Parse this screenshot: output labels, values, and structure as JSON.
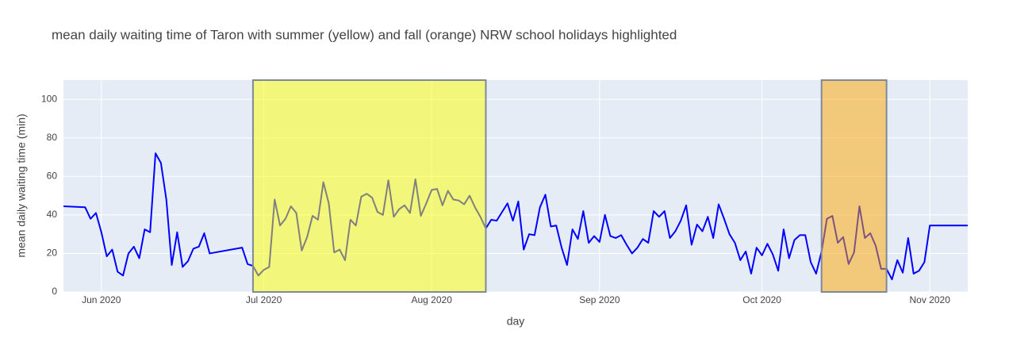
{
  "chart_data": {
    "type": "line",
    "title": "mean daily waiting time of Taron with summer (yellow) and fall (orange) NRW school holidays highlighted",
    "x_label": "day",
    "y_label": "mean daily waiting time (min)",
    "x": [
      "2020-05-25",
      "2020-05-29",
      "2020-05-30",
      "2020-05-31",
      "2020-06-01",
      "2020-06-02",
      "2020-06-03",
      "2020-06-04",
      "2020-06-05",
      "2020-06-06",
      "2020-06-07",
      "2020-06-08",
      "2020-06-09",
      "2020-06-10",
      "2020-06-11",
      "2020-06-12",
      "2020-06-13",
      "2020-06-14",
      "2020-06-15",
      "2020-06-16",
      "2020-06-17",
      "2020-06-18",
      "2020-06-19",
      "2020-06-20",
      "2020-06-21",
      "2020-06-27",
      "2020-06-28",
      "2020-06-29",
      "2020-06-30",
      "2020-07-01",
      "2020-07-02",
      "2020-07-03",
      "2020-07-04",
      "2020-07-05",
      "2020-07-06",
      "2020-07-07",
      "2020-07-08",
      "2020-07-09",
      "2020-07-10",
      "2020-07-11",
      "2020-07-12",
      "2020-07-13",
      "2020-07-14",
      "2020-07-15",
      "2020-07-16",
      "2020-07-17",
      "2020-07-18",
      "2020-07-19",
      "2020-07-20",
      "2020-07-21",
      "2020-07-22",
      "2020-07-23",
      "2020-07-24",
      "2020-07-25",
      "2020-07-26",
      "2020-07-27",
      "2020-07-28",
      "2020-07-29",
      "2020-07-30",
      "2020-07-31",
      "2020-08-01",
      "2020-08-02",
      "2020-08-03",
      "2020-08-04",
      "2020-08-05",
      "2020-08-06",
      "2020-08-07",
      "2020-08-08",
      "2020-08-09",
      "2020-08-10",
      "2020-08-11",
      "2020-08-12",
      "2020-08-13",
      "2020-08-14",
      "2020-08-15",
      "2020-08-16",
      "2020-08-17",
      "2020-08-18",
      "2020-08-19",
      "2020-08-20",
      "2020-08-21",
      "2020-08-22",
      "2020-08-23",
      "2020-08-24",
      "2020-08-25",
      "2020-08-26",
      "2020-08-27",
      "2020-08-28",
      "2020-08-29",
      "2020-08-30",
      "2020-08-31",
      "2020-09-01",
      "2020-09-02",
      "2020-09-03",
      "2020-09-04",
      "2020-09-05",
      "2020-09-06",
      "2020-09-07",
      "2020-09-08",
      "2020-09-09",
      "2020-09-10",
      "2020-09-11",
      "2020-09-12",
      "2020-09-13",
      "2020-09-14",
      "2020-09-15",
      "2020-09-16",
      "2020-09-17",
      "2020-09-18",
      "2020-09-19",
      "2020-09-20",
      "2020-09-21",
      "2020-09-22",
      "2020-09-23",
      "2020-09-24",
      "2020-09-25",
      "2020-09-26",
      "2020-09-27",
      "2020-09-28",
      "2020-09-29",
      "2020-09-30",
      "2020-10-01",
      "2020-10-02",
      "2020-10-03",
      "2020-10-04",
      "2020-10-05",
      "2020-10-06",
      "2020-10-07",
      "2020-10-08",
      "2020-10-09",
      "2020-10-10",
      "2020-10-11",
      "2020-10-12",
      "2020-10-13",
      "2020-10-14",
      "2020-10-15",
      "2020-10-16",
      "2020-10-17",
      "2020-10-18",
      "2020-10-19",
      "2020-10-20",
      "2020-10-21",
      "2020-10-22",
      "2020-10-23",
      "2020-10-24",
      "2020-10-25",
      "2020-10-26",
      "2020-10-27",
      "2020-10-28",
      "2020-10-29",
      "2020-10-30",
      "2020-10-31",
      "2020-11-01",
      "2020-11-08"
    ],
    "values": [
      44.5,
      44,
      38,
      41,
      31,
      18.5,
      22,
      10.5,
      8.5,
      20,
      23.5,
      17.5,
      32.5,
      31,
      72,
      67,
      48,
      14,
      31,
      13,
      16,
      22.5,
      23.5,
      30.5,
      20,
      23,
      14.5,
      13.5,
      8.5,
      11.5,
      13,
      48,
      34.5,
      38,
      44.5,
      41,
      21.5,
      28.5,
      39.5,
      37.5,
      57,
      46,
      20.5,
      22,
      16.5,
      37.5,
      34.5,
      49.5,
      51,
      49,
      41.5,
      40,
      58,
      39,
      43,
      45,
      41,
      58.5,
      39.5,
      46,
      53,
      53.5,
      45,
      52.5,
      48,
      47.5,
      45.5,
      50,
      44,
      39,
      33,
      37.5,
      37,
      41.5,
      46,
      37,
      47,
      22,
      30,
      29.5,
      44,
      50.5,
      34,
      34.5,
      23,
      14,
      32.5,
      27.5,
      42,
      25.5,
      29,
      26,
      40,
      29,
      28,
      29.5,
      24.5,
      20,
      23,
      27.5,
      25.5,
      42,
      39,
      42,
      28,
      31.5,
      37,
      45,
      24.5,
      35,
      31.5,
      39,
      28,
      45.5,
      38,
      30,
      25.5,
      16.5,
      21,
      9.5,
      23,
      19,
      25,
      19.5,
      11,
      32.5,
      17.5,
      27,
      29.5,
      29.5,
      15.5,
      9.5,
      21,
      38,
      39.5,
      25.5,
      28.5,
      14.5,
      20.5,
      44.5,
      28,
      30.5,
      24,
      12,
      12,
      6.5,
      16.5,
      10,
      28,
      9.5,
      11,
      15.5,
      34.5,
      34.5
    ],
    "color": "blue",
    "xlim": [
      "2020-05-25",
      "2020-11-08"
    ],
    "xticks": [
      {
        "value": "2020-06-01",
        "label": "Jun 2020"
      },
      {
        "value": "2020-07-01",
        "label": "Jul 2020"
      },
      {
        "value": "2020-08-01",
        "label": "Aug 2020"
      },
      {
        "value": "2020-09-01",
        "label": "Sep 2020"
      },
      {
        "value": "2020-10-01",
        "label": "Oct 2020"
      },
      {
        "value": "2020-11-01",
        "label": "Nov 2020"
      }
    ],
    "ylim": [
      0,
      110
    ],
    "yticks": [
      0,
      20,
      40,
      60,
      80,
      100
    ],
    "grid": true,
    "highlights": [
      {
        "x0": "2020-06-29",
        "x1": "2020-08-11",
        "color": "yellow"
      },
      {
        "x0": "2020-10-12",
        "x1": "2020-10-24",
        "color": "orange"
      }
    ]
  }
}
